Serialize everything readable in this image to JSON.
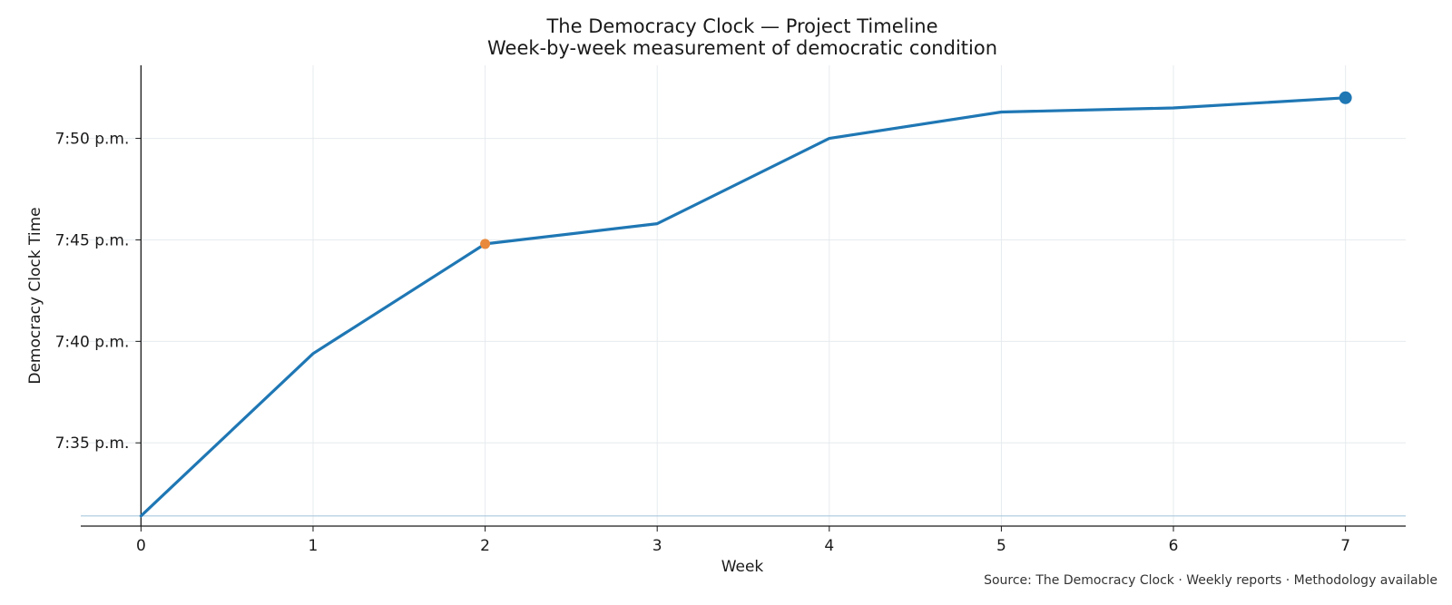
{
  "chart_data": {
    "type": "line",
    "title": "The Democracy Clock — Project Timeline",
    "subtitle": "Week-by-week measurement of democratic condition",
    "xlabel": "Week",
    "ylabel": "Democracy Clock Time",
    "x": [
      0,
      1,
      2,
      3,
      4,
      5,
      6,
      7
    ],
    "x_ticks": [
      "0",
      "1",
      "2",
      "3",
      "4",
      "5",
      "6",
      "7"
    ],
    "y_unit": "minutes past 7:00 p.m.",
    "xlim": [
      -0.35,
      7.35
    ],
    "ylim": [
      30.9,
      53.6
    ],
    "y_ticks": [
      {
        "value": 35,
        "label": "7:35 p.m."
      },
      {
        "value": 40,
        "label": "7:40 p.m."
      },
      {
        "value": 45,
        "label": "7:45 p.m."
      },
      {
        "value": 50,
        "label": "7:50 p.m."
      }
    ],
    "series": [
      {
        "values": [
          31.4,
          39.4,
          44.8,
          45.8,
          50.0,
          51.3,
          51.5,
          52.0
        ],
        "color": "#1f77b4"
      }
    ],
    "reference_line": {
      "value": 31.4,
      "color": "#a9c8dd"
    },
    "highlight_points": [
      {
        "x": 2,
        "y": 44.8,
        "color": "#e8893c"
      },
      {
        "x": 7,
        "y": 52.0,
        "color": "#1f77b4"
      }
    ],
    "grid": true,
    "legend": "none",
    "source": "Source: The Democracy Clock · Weekly reports · Methodology available"
  }
}
